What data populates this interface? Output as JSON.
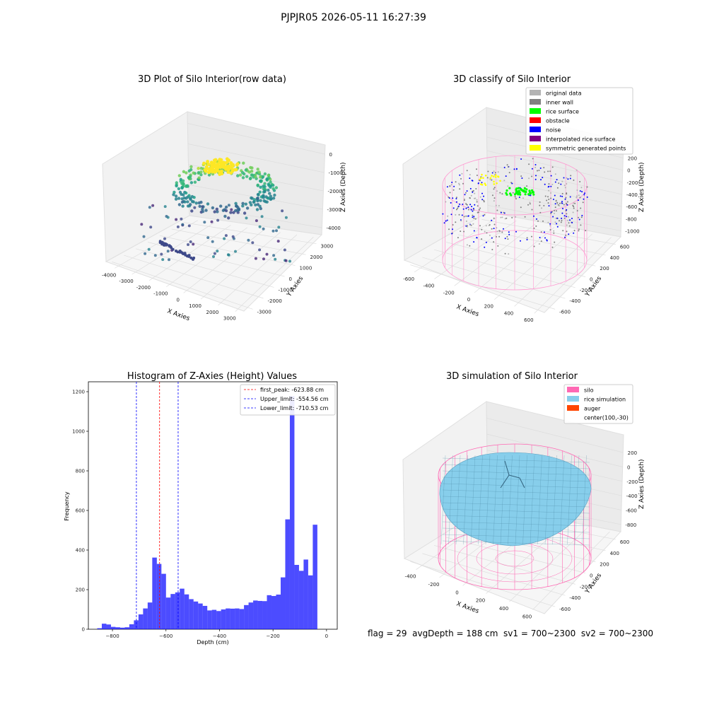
{
  "suptitle": "PJPJR05 2026-05-11 16:27:39",
  "footer": "flag = 29  avgDepth = 188 cm  sv1 = 700~2300  sv2 = 700~2300",
  "chart_data": [
    {
      "type": "scatter",
      "title": "3D Plot of Silo Interior(row data)",
      "xlabel": "X Axies",
      "ylabel": "Y Axies",
      "zlabel": "Z Axies (Depth)",
      "xticks": [
        "-4000",
        "-3000",
        "-2000",
        "-1000",
        "0",
        "1000",
        "2000",
        "3000"
      ],
      "yticks": [
        "-3000",
        "-2000",
        "-1000",
        "0",
        "1000",
        "2000",
        "3000"
      ],
      "zticks": [
        "0",
        "-1000",
        "-2000",
        "-3000",
        "-4000"
      ],
      "xlim": [
        -4000,
        3000
      ],
      "ylim": [
        -3000,
        3000
      ],
      "zlim": [
        -4500,
        0
      ],
      "colormap": "viridis"
    },
    {
      "type": "scatter",
      "title": "3D classify of Silo Interior",
      "xlabel": "X Axies",
      "ylabel": "Y Axies",
      "zlabel": "Z Axies (Depth)",
      "xticks": [
        "-600",
        "-400",
        "-200",
        "0",
        "200",
        "400",
        "600"
      ],
      "yticks": [
        "-600",
        "-400",
        "-200",
        "0",
        "200",
        "400",
        "600"
      ],
      "zticks": [
        "200",
        "0",
        "-200",
        "-400",
        "-600",
        "-800",
        "-1000"
      ],
      "legend_position": "top-right",
      "legend": [
        {
          "label": "original data",
          "color": "#b3b3b3"
        },
        {
          "label": "inner wall",
          "color": "#808080"
        },
        {
          "label": "rice surface",
          "color": "#00ff00"
        },
        {
          "label": "obstacle",
          "color": "#ff0000"
        },
        {
          "label": "noise",
          "color": "#0000ff"
        },
        {
          "label": "interpolated rice surface",
          "color": "#800080"
        },
        {
          "label": "symmetric generated points",
          "color": "#ffff00"
        }
      ]
    },
    {
      "type": "bar",
      "title": "Histogram of Z-Axies (Height) Values",
      "xlabel": "Depth (cm)",
      "ylabel": "Frequency",
      "xlim": [
        -890,
        40
      ],
      "ylim": [
        0,
        1250
      ],
      "xticks": [
        -800,
        -600,
        -400,
        -200,
        0
      ],
      "yticks": [
        0,
        200,
        400,
        600,
        800,
        1000,
        1200
      ],
      "bar_color": "#0000ff",
      "bin_start": -857,
      "bin_width": 17.14,
      "values": [
        5,
        28,
        24,
        12,
        10,
        8,
        10,
        25,
        45,
        75,
        105,
        135,
        362,
        330,
        280,
        160,
        178,
        186,
        205,
        176,
        152,
        140,
        130,
        118,
        95,
        98,
        92,
        100,
        105,
        104,
        105,
        102,
        122,
        135,
        145,
        143,
        142,
        172,
        168,
        175,
        262,
        555,
        1178,
        325,
        295,
        352,
        272,
        528
      ],
      "lines": [
        {
          "label": "first_peak: -623.88 cm",
          "x": -623.88,
          "color": "#ff0000"
        },
        {
          "label": "Upper_limit: -554.56 cm",
          "x": -554.56,
          "color": "#0000ff"
        },
        {
          "label": "Lower_limit: -710.53 cm",
          "x": -710.53,
          "color": "#0000ff"
        }
      ],
      "legend_position": "top-right"
    },
    {
      "type": "area",
      "title": "3D simulation of Silo Interior",
      "xlabel": "X Axies",
      "ylabel": "Y Axies",
      "zlabel": "Z Axies (Depth)",
      "xticks": [
        "-400",
        "-200",
        "0",
        "200",
        "400",
        "600"
      ],
      "yticks": [
        "-600",
        "-400",
        "-200",
        "0",
        "200",
        "400",
        "600"
      ],
      "zticks": [
        "200",
        "0",
        "-200",
        "-400",
        "-600",
        "-800"
      ],
      "legend_position": "top-right",
      "legend": [
        {
          "label": "silo",
          "color": "#ff69b4"
        },
        {
          "label": "rice simulation",
          "color": "#87ceeb"
        },
        {
          "label": "auger",
          "color": "#ff4500"
        },
        {
          "label": "center(100,-30)",
          "color": ""
        }
      ]
    }
  ]
}
